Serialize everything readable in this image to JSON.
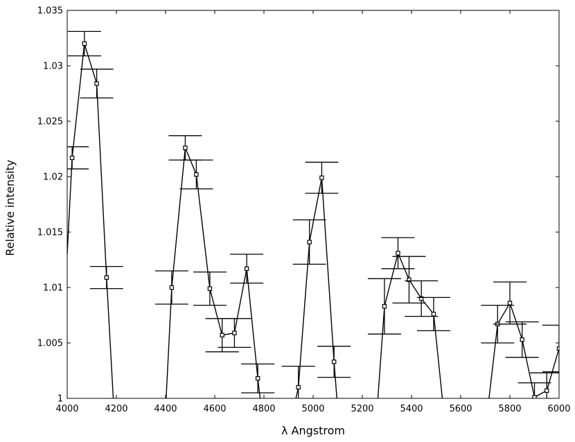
{
  "chart_data": {
    "type": "line",
    "title": "",
    "xlabel": "λ  Angstrom",
    "ylabel": "Relative  intensity",
    "xlim": [
      4000,
      6000
    ],
    "ylim": [
      1.0,
      1.035
    ],
    "grid": false,
    "x_ticks": [
      4000,
      4200,
      4400,
      4600,
      4800,
      5000,
      5200,
      5400,
      5600,
      5800,
      6000
    ],
    "x_tick_labels": [
      "4000",
      "4200",
      "4400",
      "4600",
      "4800",
      "5000",
      "5200",
      "5400",
      "5600",
      "5800",
      "6000"
    ],
    "y_ticks": [
      1.0,
      1.005,
      1.01,
      1.015,
      1.02,
      1.025,
      1.03,
      1.035
    ],
    "y_tick_labels": [
      "1",
      "1.005",
      "1.01",
      "1.015",
      "1.02",
      "1.025",
      "1.03",
      "1.035"
    ],
    "series": [
      {
        "line": [
          [
            4000,
            1.013
          ],
          [
            4020,
            1.0217
          ],
          [
            4070,
            1.032
          ],
          [
            4120,
            1.0284
          ],
          [
            4160,
            1.0109
          ],
          [
            4190,
            0.999
          ],
          [
            4400,
            0.999
          ],
          [
            4425,
            1.01
          ],
          [
            4480,
            1.0226
          ],
          [
            4525,
            1.0202
          ],
          [
            4580,
            1.0099
          ],
          [
            4630,
            1.0057
          ],
          [
            4680,
            1.0059
          ],
          [
            4730,
            1.0117
          ],
          [
            4775,
            1.0018
          ],
          [
            4790,
            0.999
          ],
          [
            4920,
            0.999
          ],
          [
            4940,
            1.001
          ],
          [
            4985,
            1.0141
          ],
          [
            5035,
            1.0199
          ],
          [
            5085,
            1.0033
          ],
          [
            5100,
            0.999
          ],
          [
            5260,
            0.999
          ],
          [
            5290,
            1.0083
          ],
          [
            5345,
            1.0131
          ],
          [
            5390,
            1.0107
          ],
          [
            5440,
            1.009
          ],
          [
            5490,
            1.0076
          ],
          [
            5530,
            0.999
          ],
          [
            5710,
            0.999
          ],
          [
            5750,
            1.0067
          ],
          [
            5800,
            1.0086
          ],
          [
            5850,
            1.0053
          ],
          [
            5900,
            1.0001
          ],
          [
            5950,
            1.0007
          ],
          [
            6000,
            1.0045
          ]
        ],
        "points": [
          {
            "x": 4020,
            "y": 1.0217,
            "err": 0.001
          },
          {
            "x": 4070,
            "y": 1.032,
            "err": 0.0011
          },
          {
            "x": 4120,
            "y": 1.0284,
            "err": 0.0013
          },
          {
            "x": 4160,
            "y": 1.0109,
            "err": 0.001
          },
          {
            "x": 4425,
            "y": 1.01,
            "err": 0.0015
          },
          {
            "x": 4480,
            "y": 1.0226,
            "err": 0.0011
          },
          {
            "x": 4525,
            "y": 1.0202,
            "err": 0.0013
          },
          {
            "x": 4580,
            "y": 1.0099,
            "err": 0.0015
          },
          {
            "x": 4630,
            "y": 1.0057,
            "err": 0.0015
          },
          {
            "x": 4680,
            "y": 1.0059,
            "err": 0.0013
          },
          {
            "x": 4730,
            "y": 1.0117,
            "err": 0.0013
          },
          {
            "x": 4775,
            "y": 1.0018,
            "err": 0.0013
          },
          {
            "x": 4940,
            "y": 1.001,
            "err": 0.0019
          },
          {
            "x": 4985,
            "y": 1.0141,
            "err": 0.002
          },
          {
            "x": 5035,
            "y": 1.0199,
            "err": 0.0014
          },
          {
            "x": 5085,
            "y": 1.0033,
            "err": 0.0014
          },
          {
            "x": 5290,
            "y": 1.0083,
            "err": 0.0025
          },
          {
            "x": 5345,
            "y": 1.0131,
            "err": 0.0014
          },
          {
            "x": 5390,
            "y": 1.0107,
            "err": 0.0021
          },
          {
            "x": 5440,
            "y": 1.009,
            "err": 0.0016
          },
          {
            "x": 5490,
            "y": 1.0076,
            "err": 0.0015
          },
          {
            "x": 5750,
            "y": 1.0067,
            "err": 0.0017
          },
          {
            "x": 5800,
            "y": 1.0086,
            "err": 0.0019
          },
          {
            "x": 5850,
            "y": 1.0053,
            "err": 0.0016
          },
          {
            "x": 5900,
            "y": 1.0001,
            "err": 0.0013
          },
          {
            "x": 5950,
            "y": 1.0007,
            "err": 0.0016
          },
          {
            "x": 6000,
            "y": 1.0045,
            "err": 0.0021
          }
        ],
        "color": "#000000"
      }
    ]
  }
}
